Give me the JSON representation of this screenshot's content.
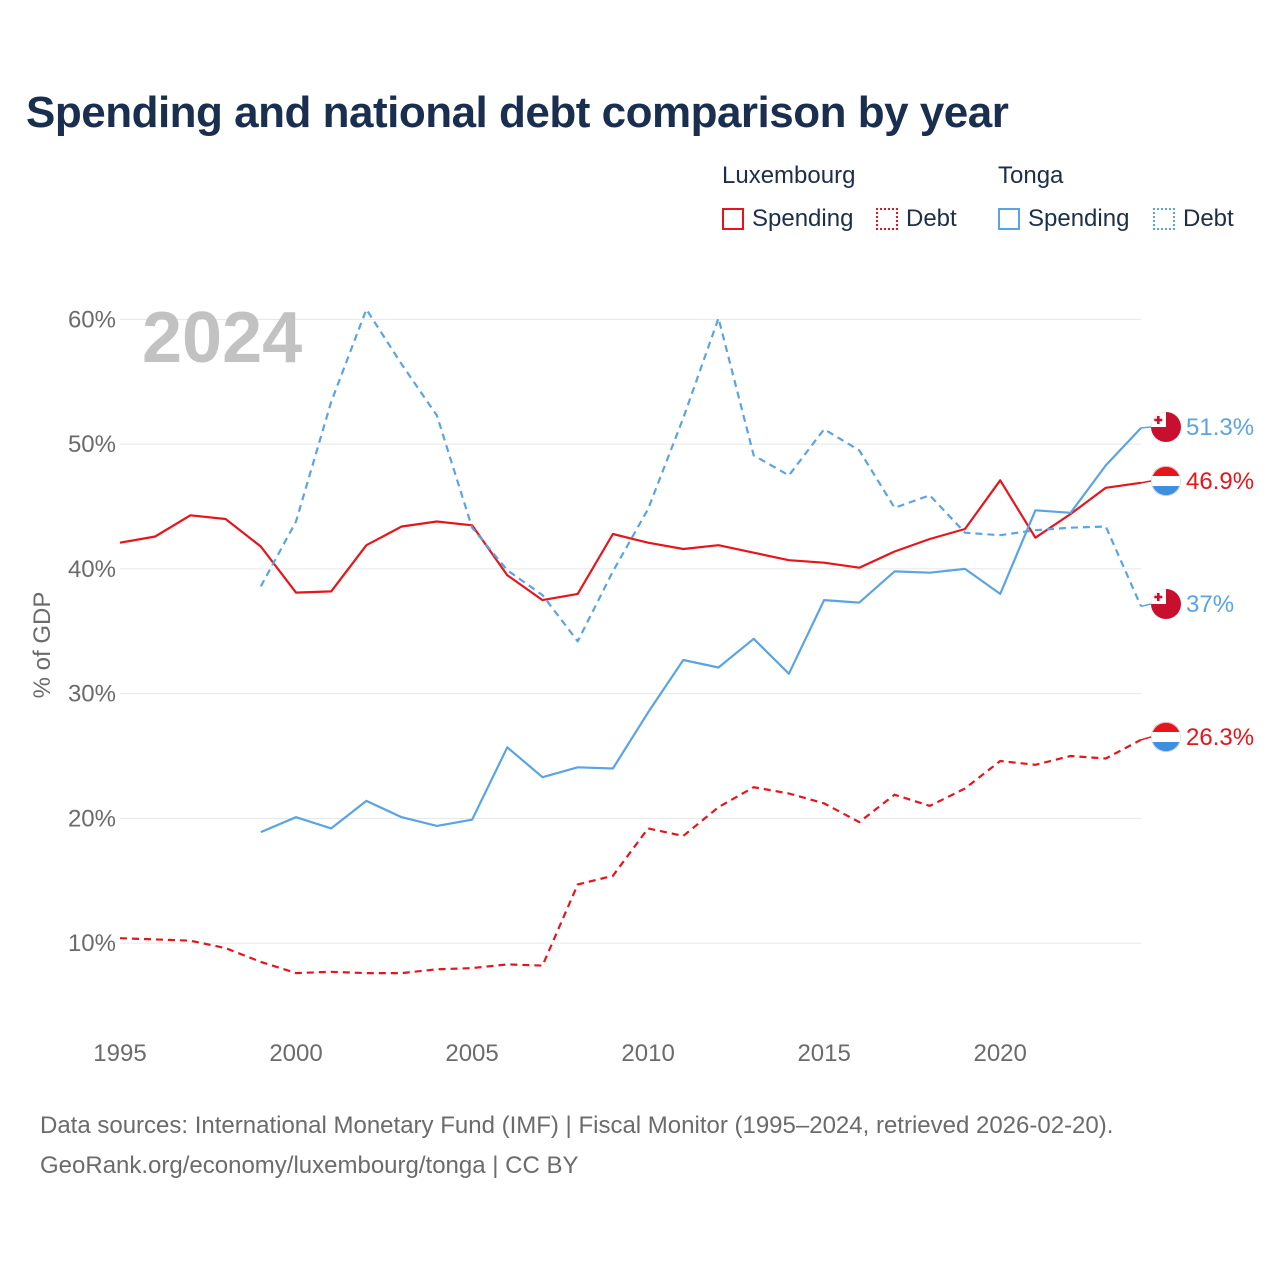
{
  "title": "Spending and national debt comparison by year",
  "legend": {
    "countries": [
      {
        "name": "Luxembourg",
        "items": [
          "Spending",
          "Debt"
        ]
      },
      {
        "name": "Tonga",
        "items": [
          "Spending",
          "Debt"
        ]
      }
    ]
  },
  "year_label": "2024",
  "footer": {
    "line1": "Data sources: International Monetary Fund (IMF) | Fiscal Monitor (1995–2024, retrieved 2026-02-20).",
    "line2": "GeoRank.org/economy/luxembourg/tonga | CC BY"
  },
  "colors": {
    "luxembourg": "#e8141b",
    "tonga": "#5aa4e3",
    "grid": "#e6e6e6",
    "axis_text": "#6b6b6b",
    "year_watermark": "#c2c2c2"
  },
  "chart_data": {
    "type": "line",
    "title": "Spending and national debt comparison by year",
    "xlabel": "",
    "ylabel": "% of GDP",
    "xlim": [
      1995,
      2024
    ],
    "ylim": [
      4,
      63
    ],
    "x_ticks": [
      1995,
      2000,
      2005,
      2010,
      2015,
      2020
    ],
    "y_ticks": [
      10,
      20,
      30,
      40,
      50,
      60
    ],
    "y_tick_labels": [
      "10%",
      "20%",
      "30%",
      "40%",
      "50%",
      "60%"
    ],
    "series": [
      {
        "name": "Luxembourg Spending",
        "country": "luxembourg",
        "style": "solid",
        "end_label": "46.9%",
        "points": [
          [
            1995,
            42.1
          ],
          [
            1996,
            42.6
          ],
          [
            1997,
            44.3
          ],
          [
            1998,
            44.0
          ],
          [
            1999,
            41.8
          ],
          [
            2000,
            38.1
          ],
          [
            2001,
            38.2
          ],
          [
            2002,
            41.9
          ],
          [
            2003,
            43.4
          ],
          [
            2004,
            43.8
          ],
          [
            2005,
            43.5
          ],
          [
            2006,
            39.5
          ],
          [
            2007,
            37.5
          ],
          [
            2008,
            38.0
          ],
          [
            2009,
            42.8
          ],
          [
            2010,
            42.1
          ],
          [
            2011,
            41.6
          ],
          [
            2012,
            41.9
          ],
          [
            2013,
            41.3
          ],
          [
            2014,
            40.7
          ],
          [
            2015,
            40.5
          ],
          [
            2016,
            40.1
          ],
          [
            2017,
            41.4
          ],
          [
            2018,
            42.4
          ],
          [
            2019,
            43.2
          ],
          [
            2020,
            47.1
          ],
          [
            2021,
            42.5
          ],
          [
            2022,
            44.4
          ],
          [
            2023,
            46.5
          ],
          [
            2024,
            46.9
          ]
        ]
      },
      {
        "name": "Luxembourg Debt",
        "country": "luxembourg",
        "style": "dashed",
        "end_label": "26.3%",
        "points": [
          [
            1995,
            10.4
          ],
          [
            1996,
            10.3
          ],
          [
            1997,
            10.2
          ],
          [
            1998,
            9.6
          ],
          [
            1999,
            8.5
          ],
          [
            2000,
            7.6
          ],
          [
            2001,
            7.7
          ],
          [
            2002,
            7.6
          ],
          [
            2003,
            7.6
          ],
          [
            2004,
            7.9
          ],
          [
            2005,
            8.0
          ],
          [
            2006,
            8.3
          ],
          [
            2007,
            8.2
          ],
          [
            2008,
            14.7
          ],
          [
            2009,
            15.4
          ],
          [
            2010,
            19.2
          ],
          [
            2011,
            18.6
          ],
          [
            2012,
            20.9
          ],
          [
            2013,
            22.5
          ],
          [
            2014,
            22.0
          ],
          [
            2015,
            21.2
          ],
          [
            2016,
            19.7
          ],
          [
            2017,
            21.9
          ],
          [
            2018,
            21.0
          ],
          [
            2019,
            22.4
          ],
          [
            2020,
            24.6
          ],
          [
            2021,
            24.3
          ],
          [
            2022,
            25.0
          ],
          [
            2023,
            24.8
          ],
          [
            2024,
            26.3
          ]
        ]
      },
      {
        "name": "Tonga Spending",
        "country": "tonga",
        "style": "solid",
        "end_label": "51.3%",
        "points": [
          [
            1999,
            18.9
          ],
          [
            2000,
            20.1
          ],
          [
            2001,
            19.2
          ],
          [
            2002,
            21.4
          ],
          [
            2003,
            20.1
          ],
          [
            2004,
            19.4
          ],
          [
            2005,
            19.9
          ],
          [
            2006,
            25.7
          ],
          [
            2007,
            23.3
          ],
          [
            2008,
            24.1
          ],
          [
            2009,
            24.0
          ],
          [
            2010,
            28.5
          ],
          [
            2011,
            32.7
          ],
          [
            2012,
            32.1
          ],
          [
            2013,
            34.4
          ],
          [
            2014,
            31.6
          ],
          [
            2015,
            37.5
          ],
          [
            2016,
            37.3
          ],
          [
            2017,
            39.8
          ],
          [
            2018,
            39.7
          ],
          [
            2019,
            40.0
          ],
          [
            2020,
            38.0
          ],
          [
            2021,
            44.7
          ],
          [
            2022,
            44.5
          ],
          [
            2023,
            48.3
          ],
          [
            2024,
            51.3
          ]
        ]
      },
      {
        "name": "Tonga Debt",
        "country": "tonga",
        "style": "dashed",
        "end_label": "37%",
        "points": [
          [
            1999,
            38.6
          ],
          [
            2000,
            43.8
          ],
          [
            2001,
            53.4
          ],
          [
            2002,
            60.8
          ],
          [
            2003,
            56.4
          ],
          [
            2004,
            52.3
          ],
          [
            2005,
            43.3
          ],
          [
            2006,
            39.9
          ],
          [
            2007,
            37.9
          ],
          [
            2008,
            34.2
          ],
          [
            2009,
            39.8
          ],
          [
            2010,
            44.8
          ],
          [
            2011,
            52.1
          ],
          [
            2012,
            60.1
          ],
          [
            2013,
            49.1
          ],
          [
            2014,
            47.5
          ],
          [
            2015,
            51.2
          ],
          [
            2016,
            49.5
          ],
          [
            2017,
            44.9
          ],
          [
            2018,
            45.9
          ],
          [
            2019,
            42.9
          ],
          [
            2020,
            42.7
          ],
          [
            2021,
            43.1
          ],
          [
            2022,
            43.3
          ],
          [
            2023,
            43.4
          ],
          [
            2024,
            37.0
          ]
        ]
      }
    ]
  }
}
